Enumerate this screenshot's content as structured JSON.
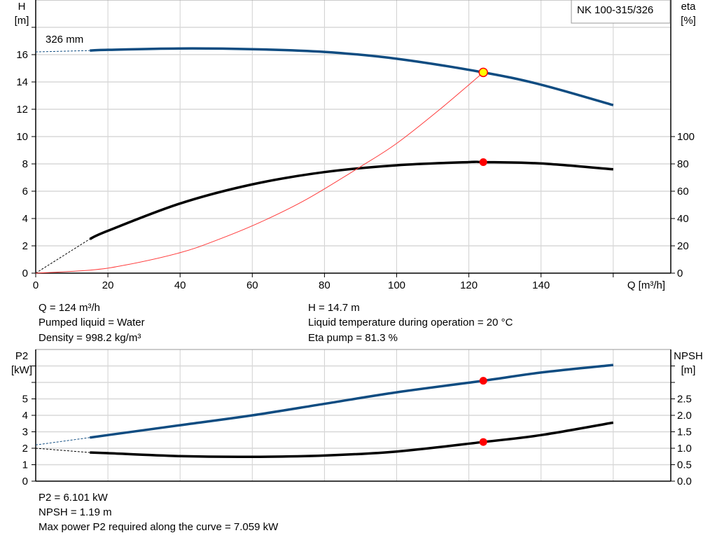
{
  "chart_data": [
    {
      "type": "line",
      "model_label": "NK 100-315/326",
      "impeller_label": "326 mm",
      "xlabel": "Q [m³/h]",
      "ylabel_left": [
        "H",
        "[m]"
      ],
      "ylabel_right": [
        "eta",
        "[%]"
      ],
      "xlim": [
        0,
        176
      ],
      "ylim_left": [
        0,
        20
      ],
      "ylim_right_ticks": [
        0,
        20,
        40,
        60,
        80,
        100
      ],
      "x_ticks": [
        0,
        20,
        40,
        60,
        80,
        100,
        120,
        140
      ],
      "y_ticks_left": [
        0,
        2,
        4,
        6,
        8,
        10,
        12,
        14,
        16
      ],
      "grid": true,
      "series": [
        {
          "key": "head",
          "unit": "m",
          "color": "#0f4c81",
          "dashed_until": 15,
          "x": [
            0,
            15,
            20,
            40,
            60,
            80,
            100,
            124,
            140,
            160
          ],
          "y": [
            16.2,
            16.3,
            16.35,
            16.45,
            16.4,
            16.2,
            15.7,
            14.7,
            13.8,
            12.3
          ]
        },
        {
          "key": "eta",
          "unit": "%",
          "color": "#000000",
          "dashed_until": 15,
          "x": [
            0,
            15,
            20,
            40,
            60,
            80,
            100,
            120,
            124,
            140,
            160
          ],
          "y": [
            0,
            25,
            31,
            51,
            65,
            74,
            79,
            81.3,
            81.3,
            80.3,
            76
          ]
        },
        {
          "key": "system",
          "unit": "m",
          "color": "#ff3b3b",
          "x": [
            0,
            15,
            25,
            40,
            50,
            62,
            75,
            90,
            100,
            112,
            124
          ],
          "y": [
            0,
            0.22,
            0.6,
            1.5,
            2.4,
            3.7,
            5.4,
            7.8,
            9.5,
            12.0,
            14.7
          ]
        }
      ],
      "operating_point": {
        "q": 124,
        "h": 14.7,
        "eta": 81.3,
        "color": "#ffff00"
      }
    },
    {
      "type": "line",
      "xlabel": "",
      "ylabel_left": [
        "P2",
        "[kW]"
      ],
      "ylabel_right": [
        "NPSH",
        "[m]"
      ],
      "xlim": [
        0,
        176
      ],
      "ylim_left": [
        0,
        8
      ],
      "y_ticks_left": [
        0,
        1,
        2,
        3,
        4,
        5
      ],
      "y_ticks_right": [
        "0.0",
        "0.5",
        "1.0",
        "1.5",
        "2.0",
        "2.5"
      ],
      "grid": true,
      "series": [
        {
          "key": "p2",
          "unit": "kW",
          "color": "#0f4c81",
          "dashed_until": 15,
          "x": [
            0,
            15,
            20,
            40,
            60,
            80,
            100,
            124,
            140,
            160
          ],
          "y": [
            2.2,
            2.65,
            2.8,
            3.4,
            4.0,
            4.7,
            5.4,
            6.101,
            6.6,
            7.059
          ]
        },
        {
          "key": "npsh",
          "unit": "m",
          "color": "#000000",
          "dashed_until": 15,
          "x": [
            0,
            15,
            20,
            40,
            60,
            80,
            100,
            124,
            140,
            160
          ],
          "y": [
            1.0,
            0.87,
            0.85,
            0.76,
            0.74,
            0.78,
            0.9,
            1.19,
            1.4,
            1.78
          ]
        }
      ],
      "operating_point": {
        "q": 124,
        "p2": 6.101,
        "npsh": 1.19
      }
    }
  ],
  "info_top": {
    "q": "Q = 124 m³/h",
    "liquid": "Pumped liquid = Water",
    "density": "Density = 998.2 kg/m³",
    "h": "H = 14.7 m",
    "temp": "Liquid temperature during operation = 20 °C",
    "eta": "Eta pump = 81.3 %"
  },
  "info_bottom": {
    "p2": "P2 = 6.101 kW",
    "npsh": "NPSH = 1.19 m",
    "max_power": "Max power P2 required along the curve = 7.059 kW"
  }
}
